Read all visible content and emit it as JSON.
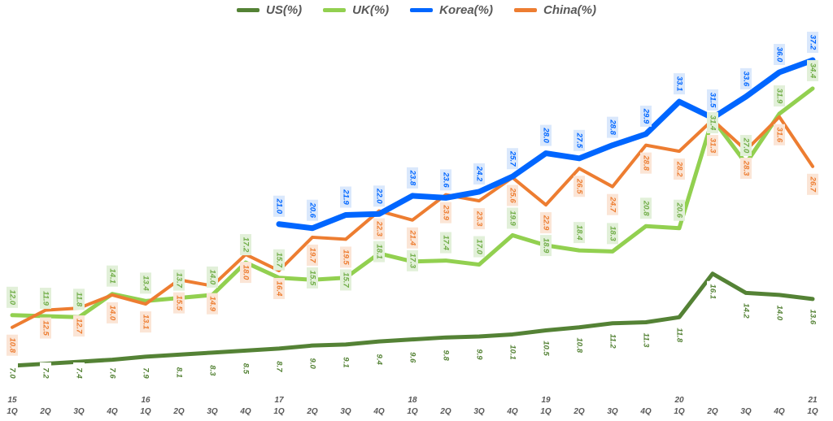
{
  "chart_data": {
    "type": "line",
    "title": "",
    "xlabel": "",
    "ylabel": "",
    "legend_position": "top",
    "grid": false,
    "years": [
      "15",
      "",
      "",
      "",
      "16",
      "",
      "",
      "",
      "17",
      "",
      "",
      "",
      "18",
      "",
      "",
      "",
      "19",
      "",
      "",
      "",
      "20",
      "",
      "",
      "",
      "21"
    ],
    "quarters": [
      "1Q",
      "2Q",
      "3Q",
      "4Q",
      "1Q",
      "2Q",
      "3Q",
      "4Q",
      "1Q",
      "2Q",
      "3Q",
      "4Q",
      "1Q",
      "2Q",
      "3Q",
      "4Q",
      "1Q",
      "2Q",
      "3Q",
      "4Q",
      "1Q",
      "2Q",
      "3Q",
      "4Q",
      "1Q"
    ],
    "series": [
      {
        "name": "US(%)",
        "color": "#548235",
        "values": [
          7.0,
          7.2,
          7.4,
          7.6,
          7.9,
          8.1,
          8.3,
          8.5,
          8.7,
          9.0,
          9.1,
          9.4,
          9.6,
          9.8,
          9.9,
          10.1,
          10.5,
          10.8,
          11.2,
          11.3,
          11.8,
          16.1,
          14.2,
          14.0,
          13.6
        ]
      },
      {
        "name": "UK(%)",
        "color": "#92D050",
        "values": [
          12.0,
          11.9,
          11.8,
          14.1,
          13.4,
          13.7,
          14.0,
          17.2,
          15.7,
          15.5,
          15.7,
          18.1,
          17.3,
          17.4,
          17.0,
          19.9,
          18.9,
          18.4,
          18.3,
          20.8,
          20.6,
          31.4,
          27.0,
          31.9,
          34.4
        ]
      },
      {
        "name": "Korea(%)",
        "color": "#0066FF",
        "values": [
          null,
          null,
          null,
          null,
          null,
          null,
          null,
          null,
          21.0,
          20.6,
          21.9,
          22.0,
          23.8,
          23.6,
          24.2,
          25.7,
          28.0,
          27.5,
          28.8,
          29.9,
          33.1,
          31.5,
          33.6,
          36.0,
          37.2
        ]
      },
      {
        "name": "China(%)",
        "color": "#ED7D31",
        "values": [
          10.8,
          12.5,
          12.7,
          14.0,
          13.1,
          15.5,
          14.9,
          18.0,
          16.4,
          19.7,
          19.5,
          22.3,
          21.4,
          23.9,
          23.3,
          25.6,
          22.9,
          26.5,
          24.7,
          28.8,
          28.2,
          31.3,
          28.3,
          31.6,
          26.7
        ]
      }
    ]
  }
}
